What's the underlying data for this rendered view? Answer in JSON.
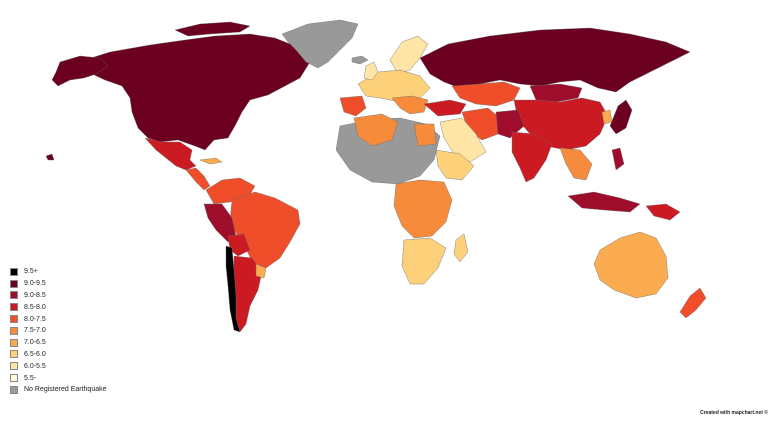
{
  "legend": {
    "items": [
      {
        "label": "9.5+",
        "color": "#000000"
      },
      {
        "label": "9.0-9.5",
        "color": "#6b0020"
      },
      {
        "label": "9.0-8.5",
        "color": "#9e0e2c"
      },
      {
        "label": "8.5-8.0",
        "color": "#cc1a22"
      },
      {
        "label": "8.0-7.5",
        "color": "#f04e2a"
      },
      {
        "label": "7.5-7.0",
        "color": "#f68b3c"
      },
      {
        "label": "7.0-6.5",
        "color": "#fbab50"
      },
      {
        "label": "6.5-6.0",
        "color": "#fdd07a"
      },
      {
        "label": "6.0-5.5",
        "color": "#fee5a6"
      },
      {
        "label": "5.5-",
        "color": "#fffbd8"
      },
      {
        "label": "No Registered Earthquake",
        "color": "#999999"
      }
    ]
  },
  "credit": "Created with mapchart.net ©",
  "palette": {
    "c95": "#000000",
    "c90": "#6b0020",
    "c85": "#9e0e2c",
    "c80": "#cc1a22",
    "c75": "#f04e2a",
    "c70": "#f68b3c",
    "c65": "#fbab50",
    "c60": "#fdd07a",
    "c55": "#fee5a6",
    "c50": "#fffbd8",
    "none": "#999999"
  }
}
